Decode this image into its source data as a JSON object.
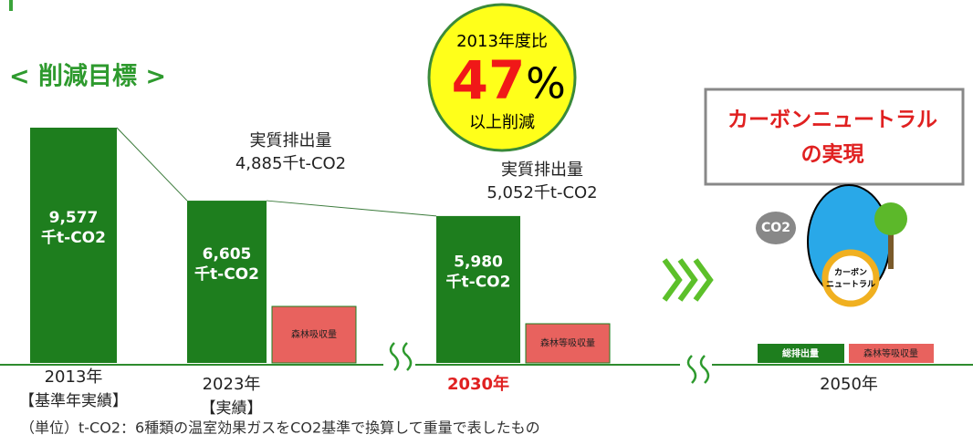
{
  "heading": "< 削減目標 >",
  "badge": {
    "line1": "2013年度比",
    "number": "47",
    "unit": "%",
    "line2": "以上削減"
  },
  "bars": [
    {
      "year": "2013年",
      "note": "【基準年実績】",
      "value": 9577,
      "value_label": "9,577",
      "unit": "千t-CO2"
    },
    {
      "year": "2023年",
      "note": "【実績】",
      "value": 6605,
      "value_label": "6,605",
      "unit": "千t-CO2",
      "absorb": "森林吸収量",
      "net_title": "実質排出量",
      "net_value": "4,885千t-CO2"
    },
    {
      "year": "2030年",
      "value": 5980,
      "value_label": "5,980",
      "unit": "千t-CO2",
      "absorb": "森林等吸収量",
      "net_title": "実質排出量",
      "net_value": "5,052千t-CO2"
    }
  ],
  "goal": {
    "year": "2050年",
    "line1": "カーボンニュートラル",
    "line2": "の実現",
    "emission": "総排出量",
    "absorb": "森林等吸収量",
    "co2": "CO2",
    "badge1": "カーボン",
    "badge2": "ニュートラル"
  },
  "footnote": "（単位）t-CO2：6種類の温室効果ガスをCO2基準で換算して重量で表したもの"
}
